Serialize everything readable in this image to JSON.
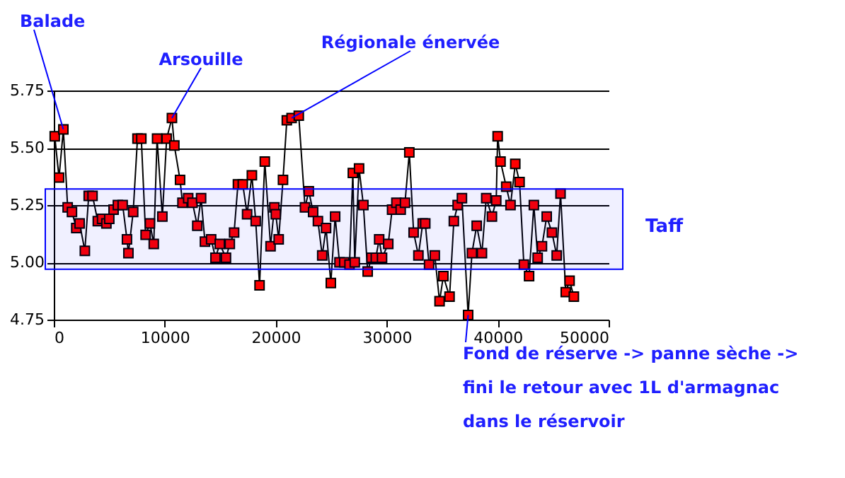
{
  "chart_data": {
    "type": "line",
    "marker": "square",
    "line_style": "solid",
    "grid": "y",
    "xlim": [
      0,
      50000
    ],
    "xticks": [
      0,
      10000,
      20000,
      30000,
      40000,
      50000
    ],
    "ylim": [
      4.75,
      5.75
    ],
    "yticks": [
      4.75,
      {
        "value": 5.0,
        "label": "5.00"
      },
      5.25,
      {
        "value": 5.5,
        "label": "5.50"
      },
      5.75
    ],
    "x": [
      86,
      474,
      862,
      1250,
      1638,
      2026,
      2328,
      2800,
      3147,
      3491,
      3966,
      4353,
      4741,
      5000,
      5388,
      5776,
      6207,
      6595,
      6724,
      7155,
      7543,
      7888,
      8276,
      8664,
      9009,
      9310,
      9784,
      10172,
      10647,
      10862,
      11379,
      11595,
      12112,
      12500,
      12931,
      13276,
      13621,
      14181,
      14569,
      14957,
      15517,
      15862,
      16250,
      16595,
      17033,
      17421,
      17852,
      18197,
      18542,
      19016,
      19534,
      19879,
      20008,
      20267,
      20655,
      21000,
      21431,
      22078,
      22638,
      22983,
      23371,
      23803,
      24191,
      24536,
      24967,
      25355,
      25743,
      26174,
      26649,
      26950,
      27123,
      27511,
      27899,
      28287,
      28632,
      29020,
      29322,
      29581,
      30141,
      30486,
      30874,
      31262,
      31650,
      32039,
      32427,
      32858,
      33246,
      33476,
      33820,
      34334,
      34764,
      35107,
      35665,
      36051,
      36395,
      36781,
      37339,
      37682,
      38112,
      38584,
      38970,
      39485,
      39871,
      40000,
      40258,
      40773,
      41159,
      41588,
      41974,
      42361,
      42833,
      43262,
      43605,
      43992,
      44421,
      44893,
      45322,
      45665,
      46137,
      46480,
      46867
    ],
    "series": [
      {
        "color": "#ff0000",
        "values": [
          5.55,
          5.37,
          5.58,
          5.24,
          5.22,
          5.15,
          5.17,
          5.05,
          5.29,
          5.29,
          5.18,
          5.19,
          5.17,
          5.19,
          5.23,
          5.25,
          5.25,
          5.1,
          5.04,
          5.22,
          5.54,
          5.54,
          5.12,
          5.17,
          5.08,
          5.54,
          5.2,
          5.54,
          5.63,
          5.51,
          5.36,
          5.26,
          5.28,
          5.26,
          5.16,
          5.28,
          5.09,
          5.1,
          5.02,
          5.08,
          5.02,
          5.08,
          5.13,
          5.34,
          5.34,
          5.21,
          5.38,
          5.18,
          4.9,
          5.44,
          5.07,
          5.24,
          5.21,
          5.1,
          5.36,
          5.62,
          5.63,
          5.64,
          5.24,
          5.31,
          5.22,
          5.18,
          5.03,
          5.15,
          4.91,
          5.2,
          5.0,
          5.0,
          4.99,
          5.39,
          5.0,
          5.41,
          5.25,
          4.96,
          5.02,
          5.02,
          5.1,
          5.02,
          5.08,
          5.23,
          5.26,
          5.23,
          5.26,
          5.48,
          5.13,
          5.03,
          5.17,
          5.17,
          4.99,
          5.03,
          4.83,
          4.94,
          4.85,
          5.18,
          5.25,
          5.28,
          4.77,
          5.04,
          5.16,
          5.04,
          5.28,
          5.2,
          5.27,
          5.55,
          5.44,
          5.33,
          5.25,
          5.43,
          5.35,
          4.99,
          4.94,
          5.25,
          5.02,
          5.07,
          5.2,
          5.13,
          5.03,
          5.3,
          4.87,
          4.92,
          4.85
        ]
      }
    ],
    "bands": [
      {
        "axis": "y",
        "from": 4.97,
        "to": 5.32,
        "label": "Taff",
        "color": "#0000ff"
      }
    ],
    "annotations": [
      {
        "text": "Balade",
        "x": 862,
        "y": 5.58
      },
      {
        "text": "Arsouille",
        "x": 10647,
        "y": 5.63
      },
      {
        "text": "Régionale énervée",
        "x": 21431,
        "y": 5.63
      },
      {
        "text": "Fond de réserve -> panne sèche ->\nfini le retour avec 1L d'armagnac\ndans le réservoir",
        "x": 37339,
        "y": 4.77
      }
    ]
  }
}
